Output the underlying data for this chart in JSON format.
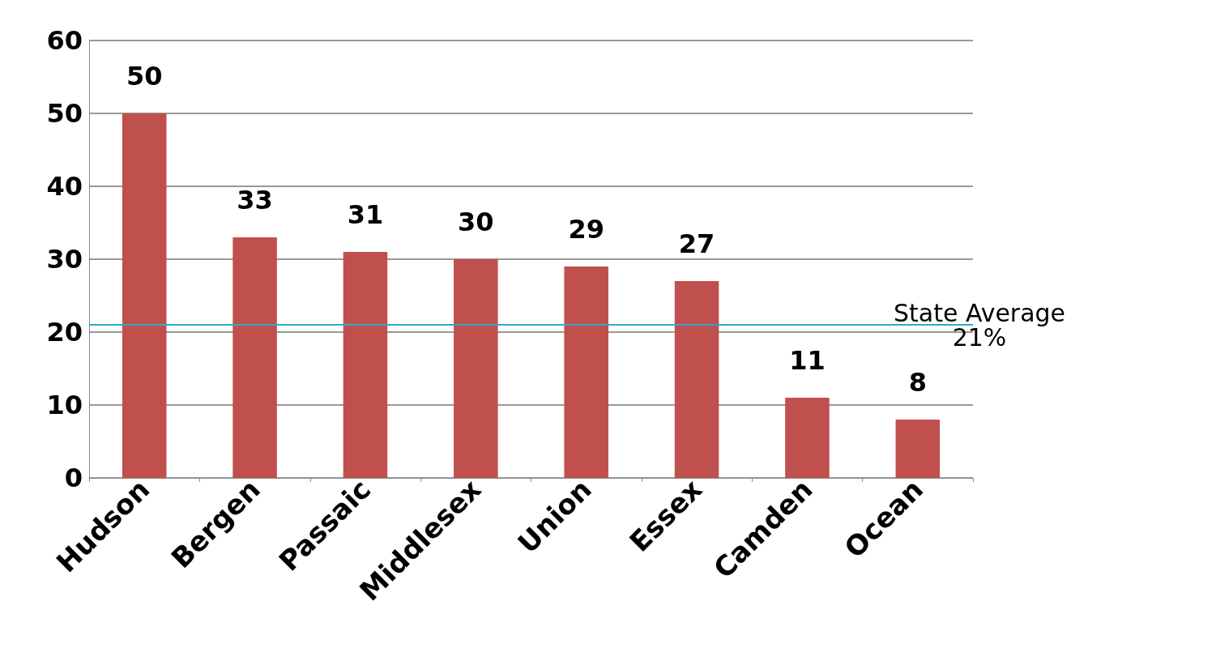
{
  "chart_data": {
    "type": "bar",
    "categories": [
      "Hudson",
      "Bergen",
      "Passaic",
      "Middlesex",
      "Union",
      "Essex",
      "Camden",
      "Ocean"
    ],
    "values": [
      50,
      33,
      31,
      30,
      29,
      27,
      11,
      8
    ],
    "color": "#c0504d",
    "ylim": [
      0,
      60
    ],
    "yticks": [
      0,
      10,
      20,
      30,
      40,
      50,
      60
    ],
    "grid": "y",
    "data_labels": true,
    "ref_lines": [
      {
        "axis": "y",
        "value": 21,
        "label": "State Average\n21%",
        "color": "#31a9c8"
      }
    ]
  }
}
